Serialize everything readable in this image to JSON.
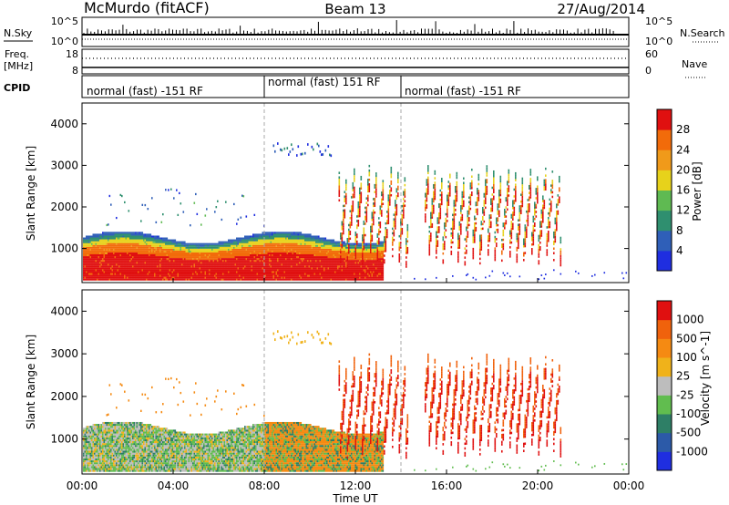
{
  "header": {
    "title_left": "McMurdo (fitACF)",
    "title_center": "Beam 13",
    "title_right": "27/Aug/2014"
  },
  "nsky_panel": {
    "label_left": "N.Sky",
    "label_right": "N.Search",
    "ticks_left": [
      "10^5",
      "10^0"
    ],
    "ticks_right": [
      "10^5",
      "10^0"
    ]
  },
  "freq_panel": {
    "label_left_1": "Freq.",
    "label_left_2": "[MHz]",
    "label_right": "Nave",
    "ticks_left": [
      "18",
      "8"
    ],
    "ticks_right": [
      "60",
      "0"
    ]
  },
  "cpid_panel": {
    "label": "CPID",
    "segments": [
      {
        "start": "00:00",
        "end": "08:00",
        "text": "normal (fast) -151 RF"
      },
      {
        "start": "08:00",
        "end": "14:00",
        "text": "normal (fast) 151 RF"
      },
      {
        "start": "14:00",
        "end": "24:00",
        "text": "normal (fast) -151 RF"
      }
    ]
  },
  "axes": {
    "ylabel": "Slant Range [km]",
    "yticks": [
      "1000",
      "2000",
      "3000",
      "4000"
    ],
    "xticks": [
      "00:00",
      "04:00",
      "08:00",
      "12:00",
      "16:00",
      "20:00",
      "00:00"
    ],
    "xlabel": "Time UT"
  },
  "power_colorbar": {
    "label": "Power [dB]",
    "ticks": [
      "4",
      "8",
      "12",
      "16",
      "20",
      "24",
      "28"
    ],
    "colors": [
      "#1f2ee0",
      "#2f5fb8",
      "#2f8f6f",
      "#5fba52",
      "#e7d21b",
      "#f09a1a",
      "#f26b0a",
      "#e01010"
    ]
  },
  "velocity_colorbar": {
    "label": "Velocity [m s^-1]",
    "ticks": [
      "1000",
      "500",
      "100",
      "25",
      "-25",
      "-100",
      "-500",
      "-1000"
    ],
    "colors": [
      "#1f2ee0",
      "#2c5aa8",
      "#2e7f66",
      "#61bd4f",
      "#bdbdbd",
      "#f0b21a",
      "#f58a12",
      "#f0620c",
      "#e01010"
    ]
  },
  "chart_data": {
    "type": "heatmap",
    "title": "McMurdo (fitACF)",
    "subtitle": "Beam 13",
    "date": "27/Aug/2014",
    "xlabel": "Time UT",
    "ylabel": "Slant Range [km]",
    "xlim": [
      "00:00",
      "24:00"
    ],
    "ylim": [
      180,
      4500
    ],
    "panels": [
      {
        "name": "Power [dB]",
        "scale": [
          0,
          30
        ]
      },
      {
        "name": "Velocity [m s^-1]",
        "scale": [
          -1000,
          1000
        ]
      }
    ],
    "cpid_changes": [
      "08:00",
      "14:00"
    ]
  }
}
